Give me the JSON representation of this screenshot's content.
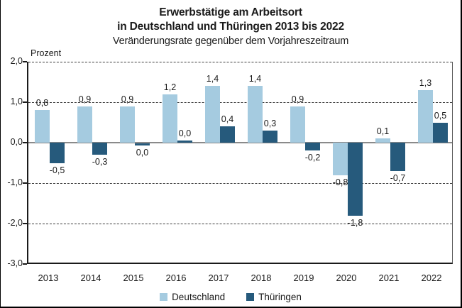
{
  "title": {
    "line1": "Erwerbstätige am Arbeitsort",
    "line2": "in Deutschland und Thüringen 2013 bis 2022",
    "line3": "Veränderungsrate gegenüber dem Vorjahreszeitraum"
  },
  "colors": {
    "deutschland": "#a5cbe0",
    "thueringen": "#265a7c",
    "zero_line": "#8a8a8a",
    "grid": "#3a3a3a"
  },
  "chart_data": {
    "type": "bar",
    "title": "Erwerbstätige am Arbeitsort in Deutschland und Thüringen 2013 bis 2022",
    "subtitle": "Veränderungsrate gegenüber dem Vorjahreszeitraum",
    "ylabel": "Prozent",
    "xlabel": "",
    "ylim": [
      -3.0,
      2.0
    ],
    "grid": "horizontal dashed at 2,1,-1,-2; solid gray zero line",
    "legend_position": "bottom-center",
    "categories": [
      "2013",
      "2014",
      "2015",
      "2016",
      "2017",
      "2018",
      "2019",
      "2020",
      "2021",
      "2022"
    ],
    "yticks": [
      {
        "value": 2,
        "label": "2,0",
        "style": "dashed"
      },
      {
        "value": 1,
        "label": "1,0",
        "style": "dashed"
      },
      {
        "value": 0,
        "label": "0,0",
        "style": "zero"
      },
      {
        "value": -1,
        "label": "-1,0",
        "style": "dashed"
      },
      {
        "value": -2,
        "label": "-2,0",
        "style": "dashed"
      },
      {
        "value": -3,
        "label": "-3,0",
        "style": "axis"
      }
    ],
    "series": [
      {
        "name": "Deutschland",
        "color_key": "deutschland",
        "values": [
          0.8,
          0.9,
          0.9,
          1.2,
          1.4,
          1.4,
          0.9,
          -0.8,
          0.1,
          1.3
        ],
        "labels": [
          "0,8",
          "0,9",
          "0,9",
          "1,2",
          "1,4",
          "1,4",
          "0,9",
          "-0,8",
          "0,1",
          "1,3"
        ]
      },
      {
        "name": "Thüringen",
        "color_key": "thueringen",
        "values": [
          -0.5,
          -0.3,
          0.0,
          0.0,
          0.4,
          0.3,
          -0.2,
          -1.8,
          -0.7,
          0.5
        ],
        "labels": [
          "-0,5",
          "-0,3",
          "0,0",
          "0,0",
          "0,4",
          "0,3",
          "-0,2",
          "-1,8",
          "-0,7",
          "0,5"
        ],
        "zero_dirs": {
          "2": -1,
          "3": 1
        }
      }
    ]
  },
  "legend": [
    {
      "label": "Deutschland",
      "color_key": "deutschland"
    },
    {
      "label": "Thüringen",
      "color_key": "thueringen"
    }
  ]
}
